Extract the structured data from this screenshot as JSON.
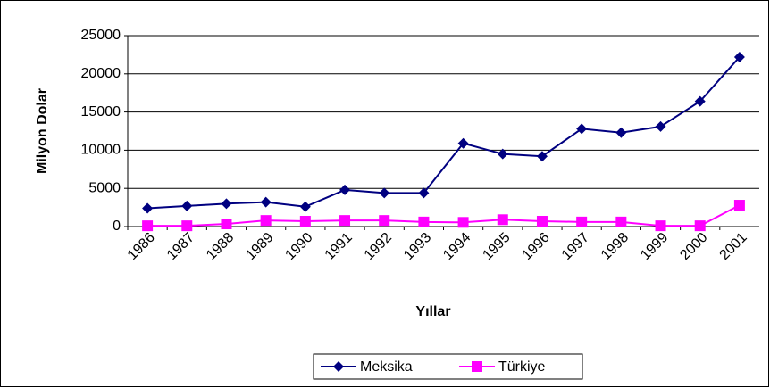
{
  "chart_data": {
    "type": "line",
    "x_label": "Yıllar",
    "y_label": "Milyon Dolar",
    "categories": [
      "1986",
      "1987",
      "1988",
      "1989",
      "1990",
      "1991",
      "1992",
      "1993",
      "1994",
      "1995",
      "1996",
      "1997",
      "1998",
      "1999",
      "2000",
      "2001"
    ],
    "series": [
      {
        "name": "Meksika",
        "color": "#000080",
        "marker": "diamond",
        "values": [
          2400,
          2700,
          3000,
          3200,
          2600,
          4800,
          4400,
          4400,
          10900,
          9500,
          9200,
          12800,
          12300,
          13100,
          16400,
          22200
        ]
      },
      {
        "name": "Türkiye",
        "color": "#ff00ff",
        "marker": "square",
        "values": [
          100,
          100,
          350,
          800,
          700,
          800,
          800,
          600,
          550,
          900,
          700,
          600,
          600,
          100,
          100,
          2800
        ]
      }
    ],
    "ylim": [
      0,
      25000
    ],
    "yticks": [
      0,
      5000,
      10000,
      15000,
      20000,
      25000
    ],
    "grid": true,
    "legend": "bottom"
  }
}
